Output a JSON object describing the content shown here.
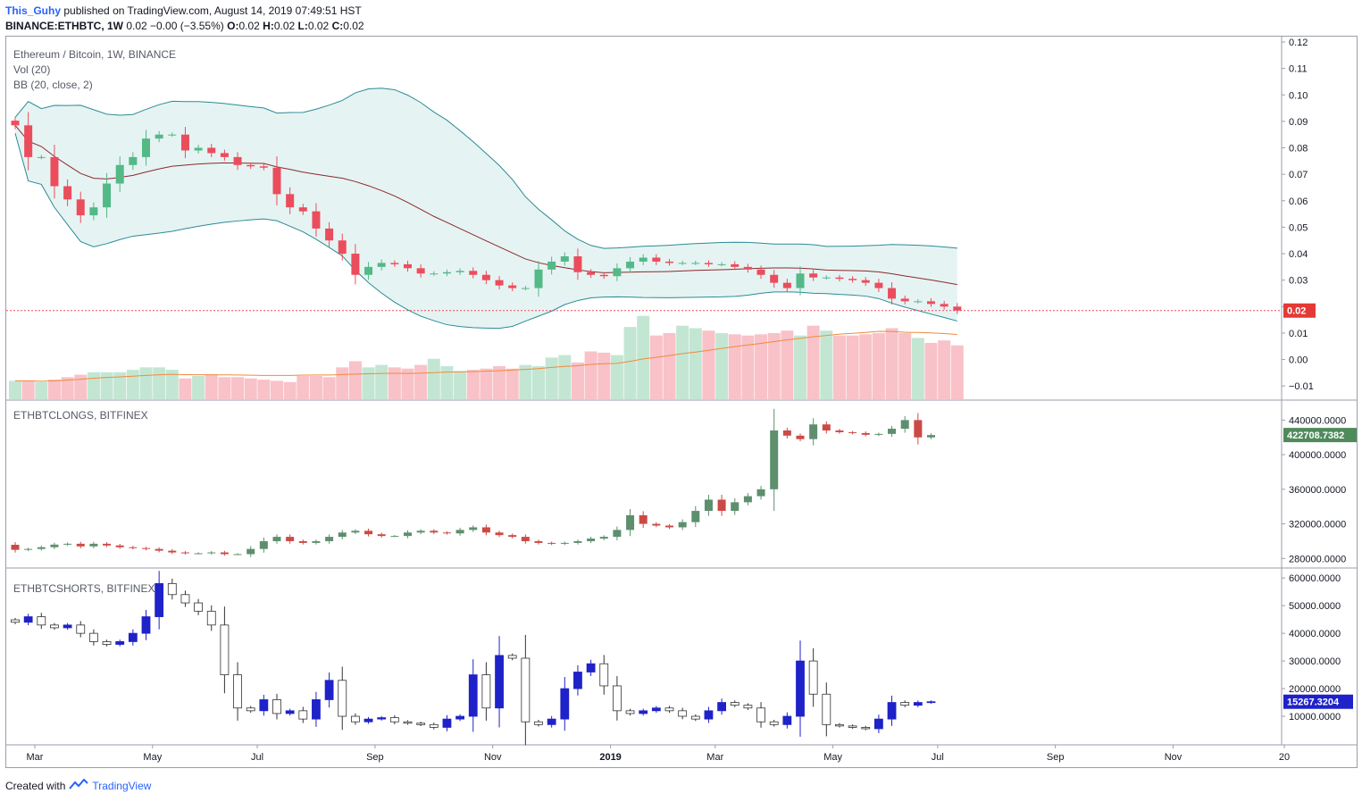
{
  "header": {
    "author": "This_Guhy",
    "published_text": "published on TradingView.com, August 14, 2019 07:49:51 HST",
    "symbol_line": "BINANCE:ETHBTC, 1W",
    "ohlc_text": "0.02 −0.00 (−3.55%)",
    "ohlc": [
      {
        "k": "O:",
        "v": "0.02"
      },
      {
        "k": "H:",
        "v": "0.02"
      },
      {
        "k": "L:",
        "v": "0.02"
      },
      {
        "k": "C:",
        "v": "0.02"
      }
    ]
  },
  "footer": {
    "created_with": "Created with",
    "brand": "TradingView"
  },
  "colors": {
    "up": "#53b987",
    "down": "#eb4d5c",
    "vol_up": "#c3e6d3",
    "vol_down": "#f8c2c8",
    "bb_band": "#2a8c94",
    "bb_fill": "#e6f3f3",
    "bb_basis": "#8b2a2a",
    "vol_ma": "#f08a3c",
    "longs_up": "#5d8f6e",
    "longs_down": "#cc4a45",
    "shorts_up": "#1e22c8",
    "shorts_down": "#ffffff",
    "price_line": "#eb4d5c",
    "badge_red": "#e53935",
    "badge_green": "#4f8a5b",
    "badge_blue": "#1e22c8"
  },
  "chart_data": [
    {
      "type": "candlestick",
      "title": "Ethereum / Bitcoin, 1W, BINANCE",
      "legend": [
        "Ethereum / Bitcoin, 1W, BINANCE",
        "Vol (20)",
        "BB (20, close, 2)"
      ],
      "ylim": [
        -0.015,
        0.12
      ],
      "y_ticks": [
        "0.12",
        "0.11",
        "0.10",
        "0.09",
        "0.08",
        "0.07",
        "0.06",
        "0.05",
        "0.04",
        "0.03",
        "0.02",
        "0.01",
        "0.00",
        "−0.01"
      ],
      "y_tick_values": [
        0.12,
        0.11,
        0.1,
        0.09,
        0.08,
        0.07,
        0.06,
        0.05,
        0.04,
        0.03,
        0.02,
        0.01,
        0.0,
        -0.01
      ],
      "last_price_label": "0.02",
      "last_price": 0.0185,
      "close": [
        0.0885,
        0.0765,
        0.0765,
        0.0655,
        0.0605,
        0.0545,
        0.0575,
        0.0665,
        0.0735,
        0.0765,
        0.0835,
        0.085,
        0.085,
        0.079,
        0.08,
        0.078,
        0.0765,
        0.0735,
        0.073,
        0.0725,
        0.0625,
        0.0575,
        0.056,
        0.0495,
        0.045,
        0.04,
        0.032,
        0.035,
        0.0365,
        0.036,
        0.0345,
        0.0325,
        0.0325,
        0.033,
        0.0335,
        0.032,
        0.03,
        0.028,
        0.027,
        0.027,
        0.034,
        0.037,
        0.039,
        0.033,
        0.032,
        0.0315,
        0.0345,
        0.037,
        0.0385,
        0.037,
        0.0365,
        0.0365,
        0.0365,
        0.036,
        0.036,
        0.035,
        0.034,
        0.032,
        0.029,
        0.027,
        0.0325,
        0.031,
        0.031,
        0.0305,
        0.03,
        0.029,
        0.027,
        0.023,
        0.022,
        0.022,
        0.021,
        0.02,
        0.0185
      ],
      "volume": [
        0.0075,
        0.0075,
        0.007,
        0.008,
        0.009,
        0.01,
        0.011,
        0.011,
        0.011,
        0.012,
        0.013,
        0.013,
        0.012,
        0.0085,
        0.0095,
        0.01,
        0.009,
        0.009,
        0.0085,
        0.008,
        0.0075,
        0.007,
        0.0095,
        0.0095,
        0.009,
        0.013,
        0.0155,
        0.013,
        0.014,
        0.013,
        0.0125,
        0.014,
        0.0165,
        0.0135,
        0.0115,
        0.012,
        0.0125,
        0.0135,
        0.0125,
        0.014,
        0.0135,
        0.017,
        0.018,
        0.015,
        0.0195,
        0.019,
        0.018,
        0.0295,
        0.034,
        0.026,
        0.027,
        0.03,
        0.029,
        0.028,
        0.027,
        0.0265,
        0.026,
        0.0265,
        0.027,
        0.028,
        0.026,
        0.03,
        0.028,
        0.026,
        0.026,
        0.0265,
        0.027,
        0.029,
        0.027,
        0.025,
        0.023,
        0.024,
        0.022
      ],
      "volume_scale_note": "relative"
    },
    {
      "type": "candlestick",
      "title": "ETHBTCLONGS, BITFINEX",
      "ylim": [
        270000,
        460000
      ],
      "y_ticks": [
        "440000.0000",
        "400000.0000",
        "360000.0000",
        "320000.0000",
        "280000.0000"
      ],
      "y_tick_values": [
        440000,
        400000,
        360000,
        320000,
        280000
      ],
      "last_value_label": "422708.7382",
      "last_value": 422708.7382,
      "close": [
        290000,
        291000,
        293000,
        296000,
        297000,
        294000,
        297000,
        295000,
        293000,
        292000,
        291000,
        289000,
        287000,
        286000,
        286000,
        287000,
        285000,
        285000,
        291000,
        300000,
        305000,
        300000,
        298000,
        300000,
        305000,
        310000,
        312000,
        308000,
        306000,
        306000,
        310000,
        312000,
        310000,
        309000,
        313000,
        316000,
        310000,
        307000,
        305000,
        300000,
        298000,
        297000,
        298000,
        300000,
        303000,
        305000,
        313000,
        330000,
        320000,
        318000,
        316000,
        322000,
        335000,
        348000,
        335000,
        345000,
        352000,
        360000,
        428000,
        422000,
        418000,
        435000,
        428000,
        426000,
        425000,
        423000,
        424000,
        430000,
        440000,
        420000,
        422708
      ]
    },
    {
      "type": "candlestick",
      "title": "ETHBTCSHORTS, BITFINEX",
      "ylim": [
        0,
        62000
      ],
      "y_ticks": [
        "60000.0000",
        "50000.0000",
        "40000.0000",
        "30000.0000",
        "20000.0000",
        "10000.0000"
      ],
      "y_tick_values": [
        60000,
        50000,
        40000,
        30000,
        20000,
        10000
      ],
      "last_value_label": "15267.3204",
      "last_value": 15267.3204,
      "close": [
        44000,
        46000,
        43000,
        42000,
        43000,
        40000,
        37000,
        36000,
        37000,
        40000,
        46000,
        58000,
        54000,
        51000,
        48000,
        43000,
        25000,
        13000,
        12000,
        16000,
        11000,
        12000,
        9000,
        16000,
        23000,
        10000,
        8000,
        9000,
        9500,
        8000,
        7500,
        7000,
        6000,
        9000,
        10000,
        25000,
        13000,
        32000,
        31000,
        8000,
        7000,
        9000,
        20000,
        26000,
        29000,
        21000,
        12000,
        11000,
        12000,
        13000,
        12000,
        10000,
        9000,
        12000,
        15000,
        14000,
        13000,
        8000,
        7000,
        10000,
        30000,
        18000,
        7000,
        6500,
        6000,
        5500,
        9000,
        15000,
        14000,
        15000,
        15267
      ]
    }
  ],
  "x_axis": {
    "labels": [
      "Mar",
      "May",
      "Jul",
      "Sep",
      "Nov",
      "2019",
      "Mar",
      "May",
      "Jul",
      "Sep",
      "Nov",
      "20"
    ],
    "bold": [
      false,
      false,
      false,
      false,
      false,
      true,
      false,
      false,
      false,
      false,
      false,
      false
    ],
    "week_index": [
      1.5,
      10.5,
      18.5,
      27.5,
      36.5,
      45.5,
      53.5,
      62.5,
      70.5,
      79.5,
      88.5,
      97
    ]
  }
}
